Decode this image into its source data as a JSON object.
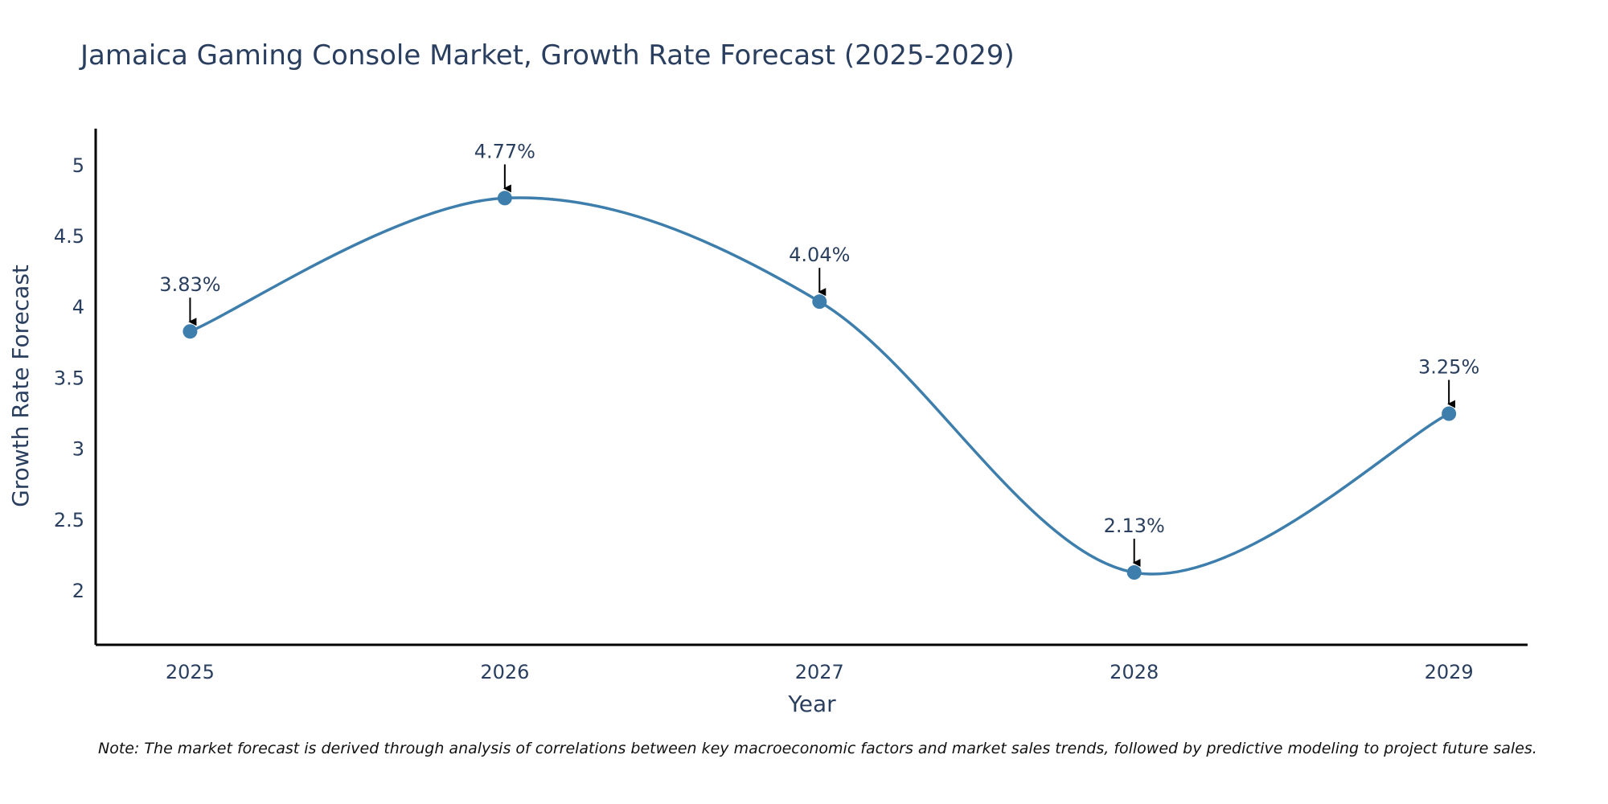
{
  "chart_data": {
    "type": "line",
    "title": "Jamaica Gaming Console Market, Growth Rate Forecast (2025-2029)",
    "xlabel": "Year",
    "ylabel": "Growth Rate Forecast",
    "categories": [
      "2025",
      "2026",
      "2027",
      "2028",
      "2029"
    ],
    "x": [
      2025,
      2026,
      2027,
      2028,
      2029
    ],
    "values": [
      3.83,
      4.77,
      4.04,
      2.13,
      3.25
    ],
    "data_labels": [
      "3.83%",
      "4.77%",
      "4.04%",
      "2.13%",
      "3.25%"
    ],
    "xlim": [
      2024.7,
      2029.25
    ],
    "ylim": [
      1.62,
      5.26
    ],
    "y_ticks": [
      2,
      2.5,
      3,
      3.5,
      4,
      4.5,
      5
    ],
    "y_tick_labels": [
      "2",
      "2.5",
      "3",
      "3.5",
      "4",
      "4.5",
      "5"
    ],
    "line_shape": "spline",
    "grid": false,
    "colors": {
      "line": "#3d7eac",
      "marker": "#3d7eac",
      "axis": "#000000",
      "text": "#2a3f5f"
    }
  },
  "note": "Note: The market forecast is derived through analysis of correlations between key macroeconomic factors and market sales trends, followed by predictive modeling to project future sales."
}
